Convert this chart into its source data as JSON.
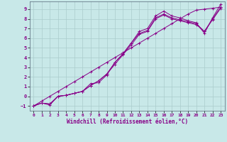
{
  "xlabel": "Windchill (Refroidissement éolien,°C)",
  "xlim": [
    -0.5,
    23.5
  ],
  "ylim": [
    -1.5,
    9.8
  ],
  "xticks": [
    0,
    1,
    2,
    3,
    4,
    5,
    6,
    7,
    8,
    9,
    10,
    11,
    12,
    13,
    14,
    15,
    16,
    17,
    18,
    19,
    20,
    21,
    22,
    23
  ],
  "yticks": [
    -1,
    0,
    1,
    2,
    3,
    4,
    5,
    6,
    7,
    8,
    9
  ],
  "background_color": "#c8e8e8",
  "line_color": "#880088",
  "grid_color": "#aacccc",
  "curves_x": [
    [
      0,
      1,
      2,
      3,
      4,
      5,
      6,
      7,
      8,
      9,
      10,
      11,
      12,
      13,
      14,
      15,
      16,
      17,
      18,
      19,
      20,
      21,
      22,
      23
    ],
    [
      0,
      1,
      2,
      3,
      4,
      5,
      6,
      7,
      8,
      9,
      10,
      11,
      12,
      13,
      14,
      15,
      16,
      17,
      18,
      19,
      20,
      21,
      22,
      23
    ],
    [
      0,
      1,
      2,
      3,
      4,
      5,
      6,
      7,
      8,
      9,
      10,
      11,
      12,
      13,
      14,
      15,
      16,
      17,
      18,
      19,
      20,
      21,
      22,
      23
    ],
    [
      0,
      1,
      2,
      3,
      4,
      5,
      6,
      7,
      8,
      9,
      10,
      11,
      12,
      13,
      14,
      15,
      16,
      17,
      18,
      19,
      20,
      21,
      22,
      23
    ]
  ],
  "curves_y": [
    [
      -1.0,
      -0.7,
      -0.9,
      0.0,
      0.1,
      0.3,
      0.5,
      1.3,
      1.4,
      2.2,
      3.5,
      4.4,
      5.5,
      6.7,
      7.0,
      8.3,
      8.8,
      8.3,
      8.1,
      7.8,
      7.6,
      6.5,
      8.1,
      9.5
    ],
    [
      -1.0,
      -0.7,
      -0.8,
      0.0,
      0.1,
      0.3,
      0.5,
      1.1,
      1.6,
      2.3,
      3.5,
      4.4,
      5.5,
      6.5,
      6.8,
      8.1,
      8.5,
      8.1,
      7.9,
      7.7,
      7.5,
      6.7,
      8.0,
      9.2
    ],
    [
      -1.0,
      -0.7,
      -0.8,
      0.0,
      0.1,
      0.3,
      0.5,
      1.1,
      1.6,
      2.3,
      3.3,
      4.3,
      5.3,
      6.4,
      6.7,
      8.0,
      8.4,
      8.0,
      7.8,
      7.6,
      7.4,
      6.7,
      7.9,
      9.1
    ],
    [
      -1.0,
      -0.5,
      0.0,
      0.5,
      1.0,
      1.5,
      2.0,
      2.5,
      3.0,
      3.5,
      4.0,
      4.5,
      5.0,
      5.5,
      6.0,
      6.5,
      7.0,
      7.5,
      8.0,
      8.5,
      8.9,
      9.0,
      9.1,
      9.2
    ]
  ]
}
